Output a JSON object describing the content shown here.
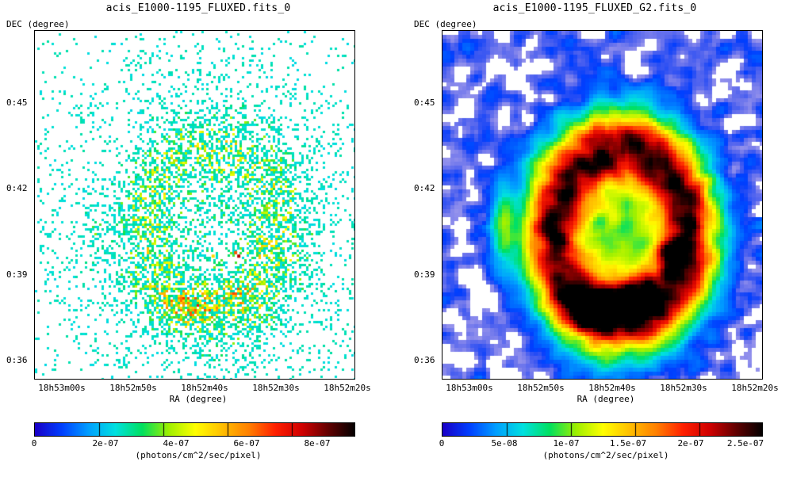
{
  "panels": [
    {
      "title": "acis_E1000-1195_FLUXED.fits_0",
      "ylabel": "DEC (degree)",
      "xlabel": "RA (degree)",
      "yticks": [
        "0:45",
        "0:42",
        "0:39",
        "0:36"
      ],
      "xticks": [
        "18h53m00s",
        "18h52m50s",
        "18h52m40s",
        "18h52m30s",
        "18h52m20s"
      ],
      "colorbar_ticks": [
        "0",
        "2e-07",
        "4e-07",
        "6e-07",
        "8e-07"
      ],
      "colorbar_unit": "(photons/cm^2/sec/pixel)",
      "style": "sparse"
    },
    {
      "title": "acis_E1000-1195_FLUXED_G2.fits_0",
      "ylabel": "DEC (degree)",
      "xlabel": "RA (degree)",
      "yticks": [
        "0:45",
        "0:42",
        "0:39",
        "0:36"
      ],
      "xticks": [
        "18h53m00s",
        "18h52m50s",
        "18h52m40s",
        "18h52m30s",
        "18h52m20s"
      ],
      "colorbar_ticks": [
        "0",
        "5e-08",
        "1e-07",
        "1.5e-07",
        "2e-07",
        "2.5e-07"
      ],
      "colorbar_unit": "(photons/cm^2/sec/pixel)",
      "style": "smoothed"
    }
  ],
  "colormap": [
    "#1a00c8",
    "#0040ff",
    "#00a0ff",
    "#00e0e0",
    "#00e060",
    "#a0f000",
    "#ffff00",
    "#ffc000",
    "#ff8000",
    "#ff2000",
    "#d00000",
    "#600000",
    "#000000"
  ]
}
